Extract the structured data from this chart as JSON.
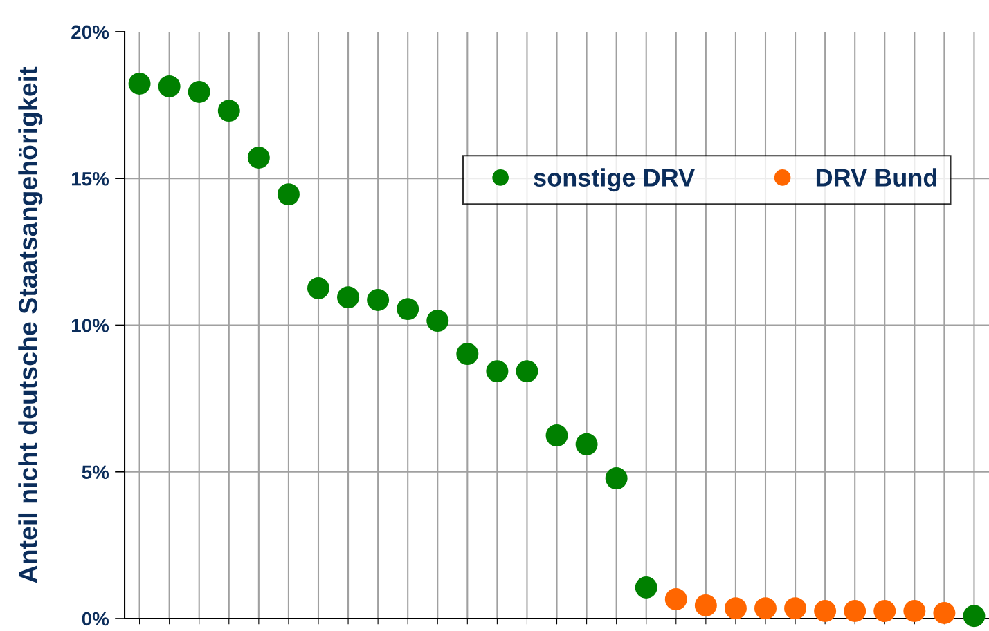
{
  "chart_data": {
    "type": "scatter",
    "ylabel": "Anteil nicht deutsche Staatsangehörigkeit",
    "categories": [
      null,
      null,
      null,
      null,
      null,
      null,
      null,
      null,
      null,
      null,
      null,
      null,
      null,
      null,
      null,
      null,
      null,
      null,
      null,
      null,
      null,
      null,
      null,
      null,
      null,
      null,
      null,
      null,
      null
    ],
    "series": [
      {
        "name": "sonstige DRV",
        "color": "#008000",
        "values": [
          18.23,
          18.14,
          17.95,
          17.31,
          15.71,
          14.46,
          11.26,
          10.95,
          10.86,
          10.55,
          10.15,
          9.02,
          8.43,
          8.43,
          6.24,
          5.94,
          4.78,
          1.06,
          null,
          null,
          null,
          null,
          null,
          null,
          null,
          null,
          null,
          null,
          0.09
        ]
      },
      {
        "name": "DRV Bund",
        "color": "#ff6600",
        "values": [
          null,
          null,
          null,
          null,
          null,
          null,
          null,
          null,
          null,
          null,
          null,
          null,
          null,
          null,
          null,
          null,
          null,
          null,
          0.66,
          0.45,
          0.35,
          0.35,
          0.35,
          0.26,
          0.26,
          0.26,
          0.26,
          0.19,
          null
        ]
      }
    ],
    "ylim": [
      0,
      20
    ],
    "yticks": [
      {
        "value": 0,
        "label": "0%"
      },
      {
        "value": 5,
        "label": "5%"
      },
      {
        "value": 10,
        "label": "10%"
      },
      {
        "value": 15,
        "label": "15%"
      },
      {
        "value": 20,
        "label": "20%"
      }
    ],
    "grid": true,
    "legend": "top right",
    "marker": "circle"
  }
}
